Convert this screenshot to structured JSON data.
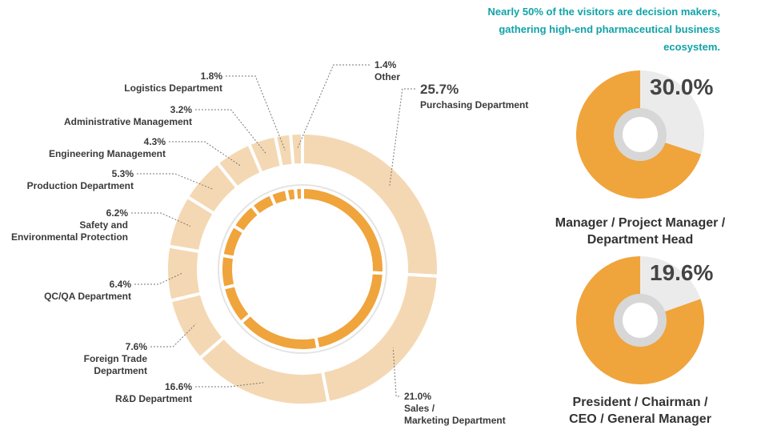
{
  "note": "Nearly 50% of the visitors are decision makers, gathering high-end pharmaceutical business ecosystem.",
  "chart_data": [
    {
      "type": "donut",
      "categories": [
        "Purchasing Department",
        "Sales /\nMarketing Department",
        "R&D Department",
        "Foreign Trade\nDepartment",
        "QC/QA Department",
        "Safety and\nEnvironmental Protection",
        "Production Department",
        "Engineering Management",
        "Administrative Management",
        "Logistics Department",
        "Other"
      ],
      "values": [
        25.7,
        21.0,
        16.6,
        7.6,
        6.4,
        6.2,
        5.3,
        4.3,
        3.2,
        1.8,
        1.4
      ],
      "value_labels": [
        "25.7%",
        "21.0%",
        "16.6%",
        "7.6%",
        "6.4%",
        "6.2%",
        "5.3%",
        "4.3%",
        "3.2%",
        "1.8%",
        "1.4%"
      ],
      "colors": [
        "#f3d2a6",
        "#f0a43c"
      ]
    },
    {
      "type": "donut",
      "categories": [
        "Manager / Project Manager /\nDepartment Head"
      ],
      "values": [
        30.0
      ],
      "value_labels": [
        "30.0%"
      ],
      "colors": [
        "#ebebeb",
        "#f0a43c"
      ]
    },
    {
      "type": "donut",
      "categories": [
        "President / Chairman /\nCEO / General Manager"
      ],
      "values": [
        19.6
      ],
      "value_labels": [
        "19.6%"
      ],
      "colors": [
        "#ebebeb",
        "#f0a43c"
      ]
    }
  ]
}
